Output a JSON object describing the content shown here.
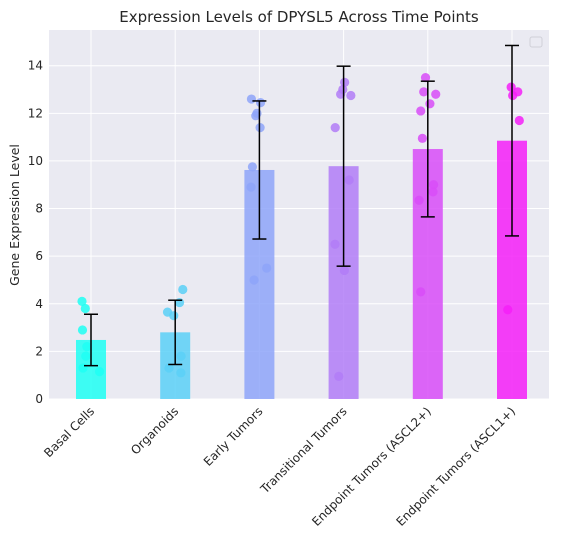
{
  "chart_data": {
    "type": "bar",
    "title": "Expression Levels of DPYSL5 Across Time Points",
    "xlabel": "",
    "ylabel": "Gene Expression Level",
    "ylim": [
      0,
      15.5
    ],
    "yticks": [
      0,
      2,
      4,
      6,
      8,
      10,
      12,
      14
    ],
    "grid": true,
    "legend": "top-right (empty)",
    "categories": [
      "Basal Cells",
      "Organoids",
      "Early Tumors",
      "Transitional Tumors",
      "Endpoint Tumors (ASCL2+)",
      "Endpoint Tumors (ASCL1+)"
    ],
    "values": [
      2.48,
      2.8,
      9.62,
      9.78,
      10.5,
      10.85
    ],
    "error": [
      1.08,
      1.35,
      2.9,
      4.2,
      2.85,
      4.0
    ],
    "colors": [
      "#1efff3",
      "#5ad0f7",
      "#8ea5f9",
      "#b17df7",
      "#d84cf8",
      "#f51ef8"
    ],
    "points": [
      [
        4.1,
        3.8,
        2.9,
        2.2,
        1.8,
        1.3,
        1.15
      ],
      [
        4.6,
        4.05,
        3.65,
        3.5,
        1.8,
        1.3,
        1.1
      ],
      [
        12.6,
        12.45,
        12.0,
        11.9,
        11.4,
        9.75,
        8.9,
        5.5,
        5.0
      ],
      [
        13.3,
        13.0,
        12.8,
        12.75,
        11.4,
        9.2,
        6.5,
        5.4,
        0.95
      ],
      [
        13.5,
        12.9,
        12.8,
        12.4,
        12.1,
        10.95,
        9.0,
        8.7,
        8.35,
        4.5
      ],
      [
        13.1,
        12.9,
        12.75,
        11.7,
        3.75
      ]
    ]
  }
}
